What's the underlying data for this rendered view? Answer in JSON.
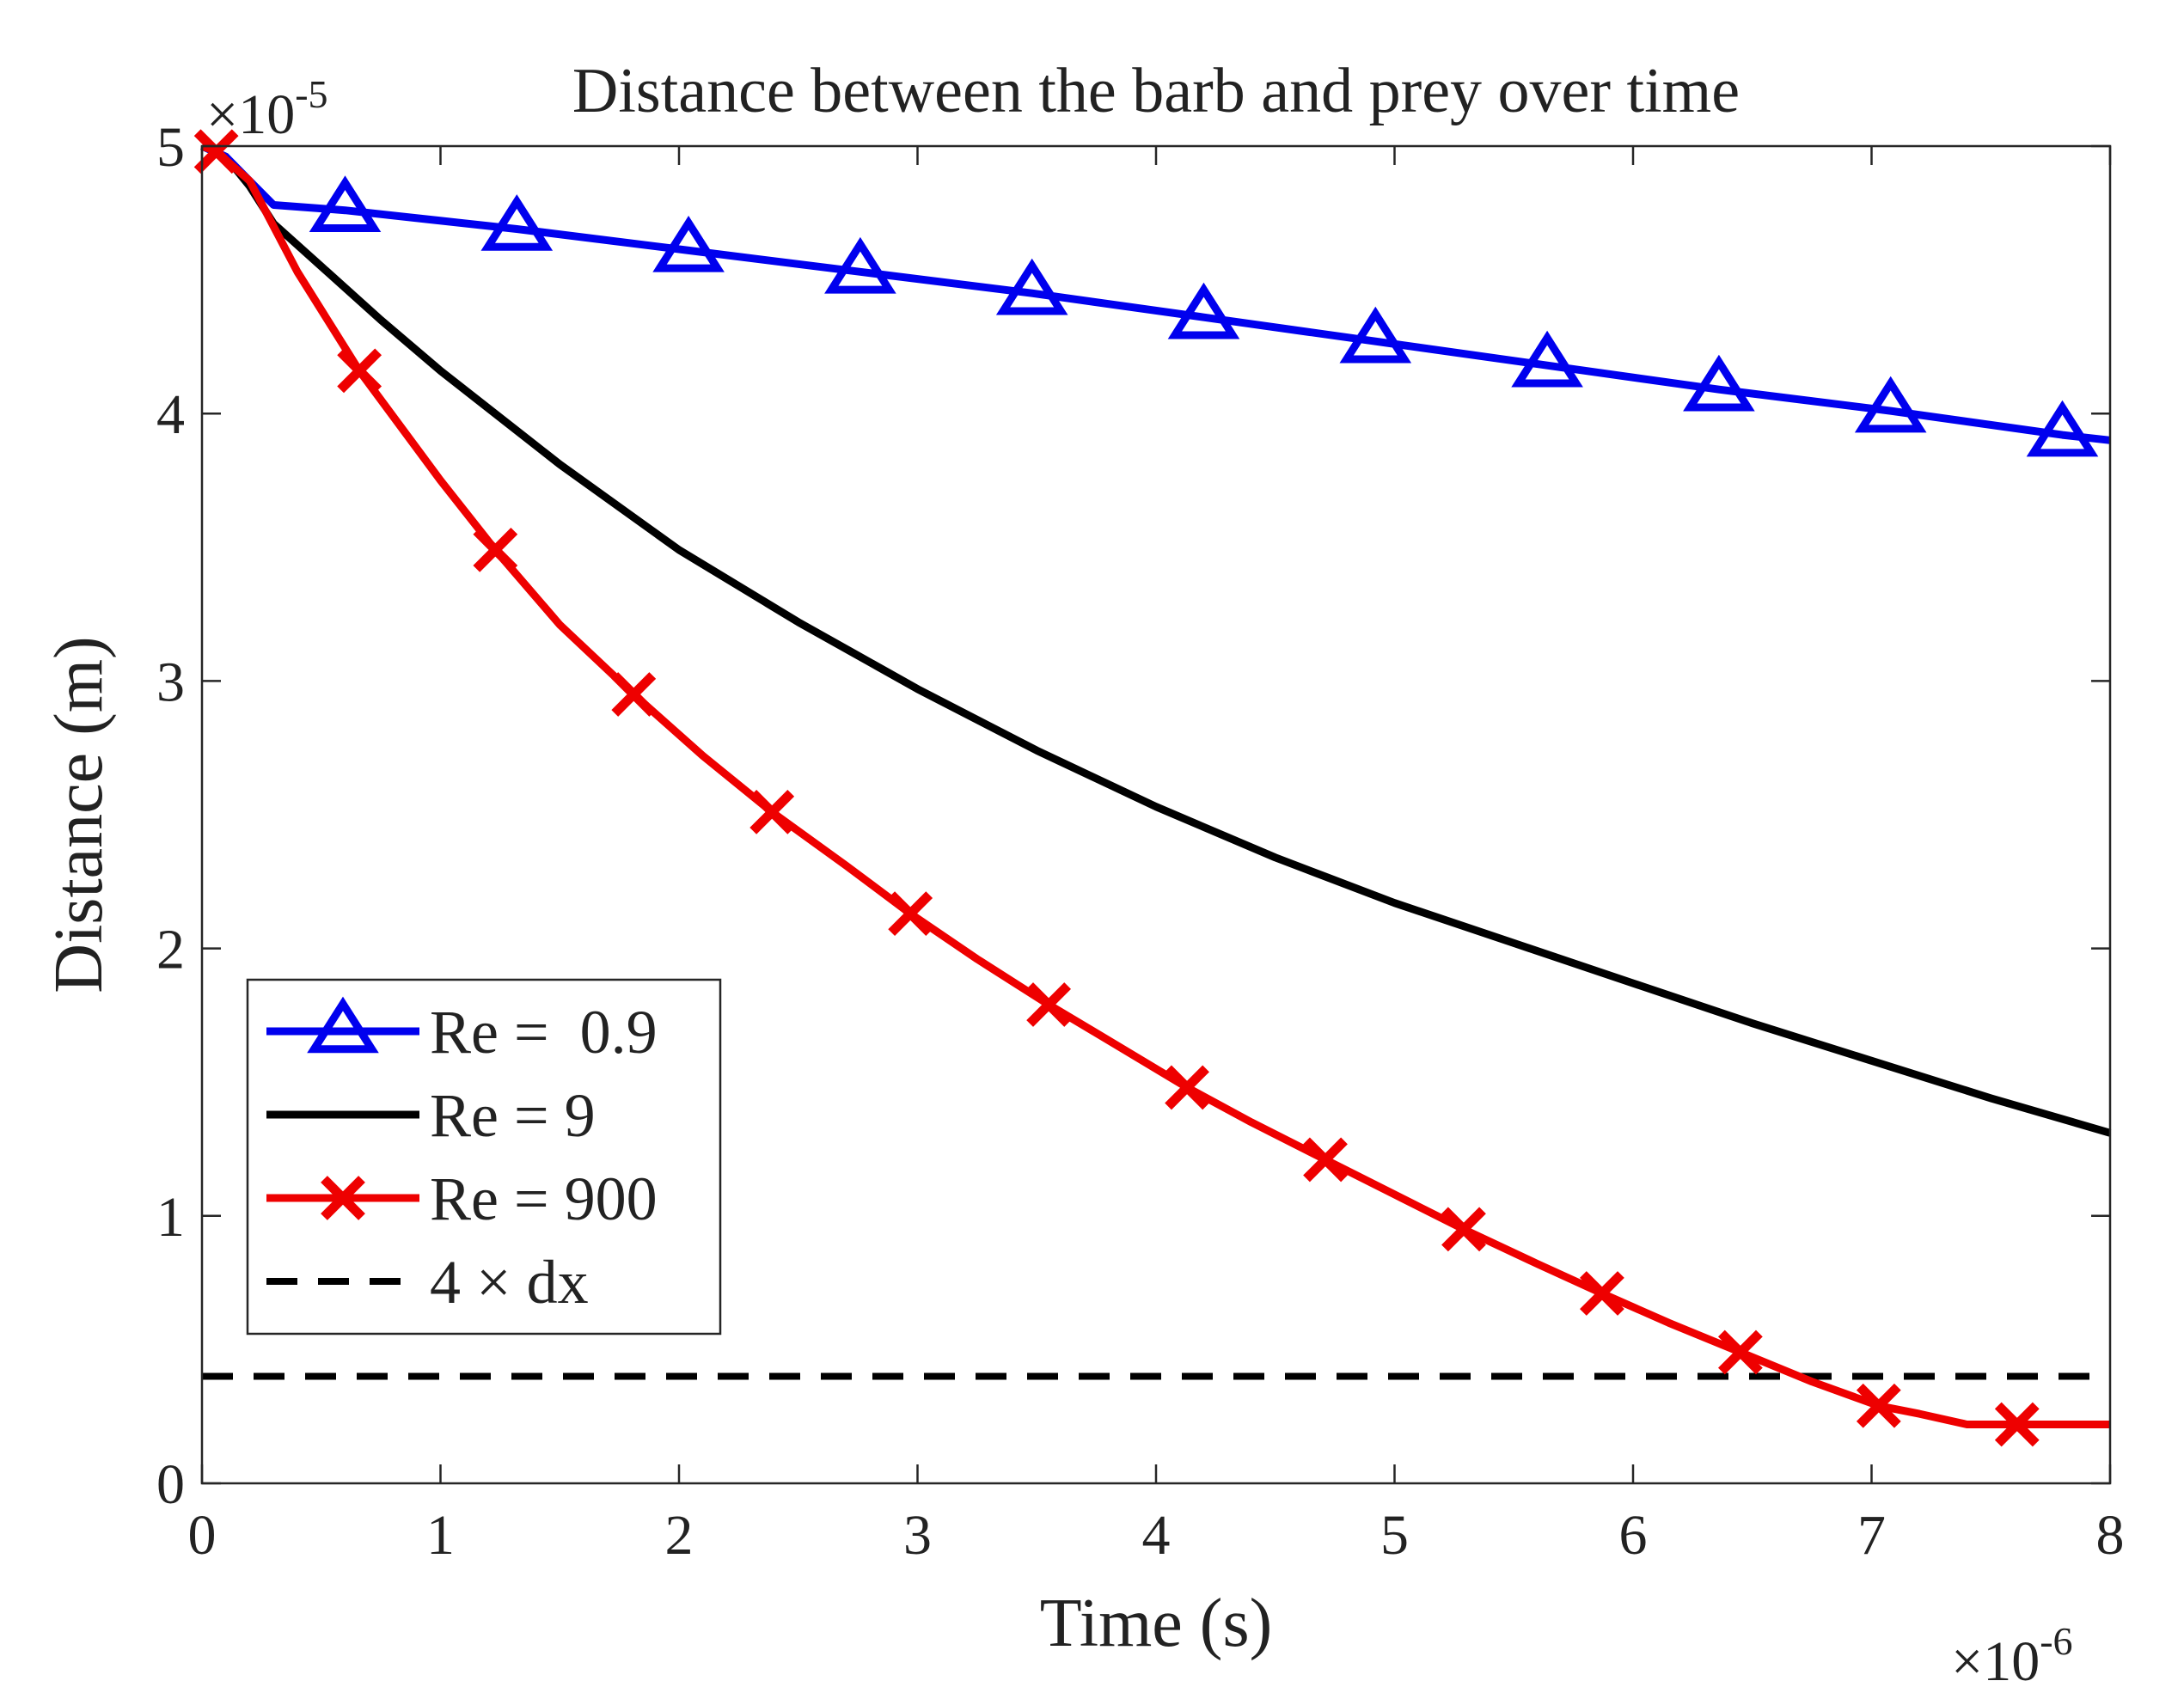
{
  "chart_data": {
    "type": "line",
    "title": "Distance between the barb and prey over time",
    "xlabel": "Time (s)",
    "ylabel": "Distance (m)",
    "xlim": [
      0,
      8
    ],
    "ylim": [
      0,
      5
    ],
    "x_ticks": [
      "0",
      "1",
      "2",
      "3",
      "4",
      "5",
      "6",
      "7",
      "8"
    ],
    "y_ticks": [
      "0",
      "1",
      "2",
      "3",
      "4",
      "5"
    ],
    "x_exponent": {
      "base": "×10",
      "exp": "-6"
    },
    "y_exponent": {
      "base": "×10",
      "exp": "-5"
    },
    "legend_position": "bottom-left",
    "series": [
      {
        "name": "Re =  0.9",
        "color": "#0000ee",
        "marker": "triangle",
        "x": [
          0,
          0.1,
          0.2,
          0.3,
          0.6,
          1.32,
          2.04,
          2.76,
          3.48,
          4.2,
          4.92,
          5.64,
          6.36,
          7.08,
          7.8,
          8.0
        ],
        "y": [
          5.0,
          4.96,
          4.87,
          4.78,
          4.76,
          4.69,
          4.61,
          4.53,
          4.45,
          4.36,
          4.27,
          4.18,
          4.09,
          4.01,
          3.92,
          3.9
        ],
        "marker_x": [
          0.6,
          1.32,
          2.04,
          2.76,
          3.48,
          4.2,
          4.92,
          5.64,
          6.36,
          7.08,
          7.8
        ]
      },
      {
        "name": "Re = 9",
        "color": "#000000",
        "marker": "none",
        "x": [
          0,
          0.1,
          0.2,
          0.3,
          0.5,
          0.75,
          1.0,
          1.5,
          2.0,
          2.5,
          3.0,
          3.5,
          4.0,
          4.5,
          5.0,
          5.5,
          6.0,
          6.5,
          7.0,
          7.5,
          8.0
        ],
        "y": [
          5.0,
          4.96,
          4.85,
          4.71,
          4.55,
          4.35,
          4.16,
          3.81,
          3.49,
          3.22,
          2.97,
          2.74,
          2.53,
          2.34,
          2.17,
          2.02,
          1.87,
          1.72,
          1.58,
          1.44,
          1.31
        ]
      },
      {
        "name": "Re = 900",
        "color": "#ee0000",
        "marker": "x",
        "x": [
          0,
          0.06,
          0.2,
          0.4,
          0.66,
          1.0,
          1.23,
          1.5,
          1.81,
          2.1,
          2.39,
          2.7,
          2.97,
          3.25,
          3.55,
          3.85,
          4.13,
          4.4,
          4.71,
          5.0,
          5.29,
          5.6,
          5.87,
          6.15,
          6.45,
          6.75,
          7.03,
          7.2,
          7.4,
          7.61,
          8.0
        ],
        "y": [
          5.0,
          4.98,
          4.87,
          4.53,
          4.16,
          3.75,
          3.49,
          3.21,
          2.95,
          2.72,
          2.51,
          2.31,
          2.13,
          1.96,
          1.79,
          1.63,
          1.48,
          1.35,
          1.21,
          1.08,
          0.95,
          0.82,
          0.71,
          0.6,
          0.49,
          0.38,
          0.29,
          0.26,
          0.22,
          0.22,
          0.22
        ],
        "marker_x": [
          0.06,
          0.66,
          1.23,
          1.81,
          2.39,
          2.97,
          3.55,
          4.13,
          4.71,
          5.29,
          5.87,
          6.45,
          7.03,
          7.61
        ],
        "marker_y": [
          4.98,
          4.16,
          3.49,
          2.95,
          2.51,
          2.13,
          1.79,
          1.48,
          1.21,
          0.95,
          0.71,
          0.49,
          0.29,
          0.22
        ]
      },
      {
        "name": "4 × dx",
        "color": "#000000",
        "marker": "none",
        "dashed": true,
        "x": [
          0,
          8
        ],
        "y": [
          0.4,
          0.4
        ]
      }
    ]
  }
}
